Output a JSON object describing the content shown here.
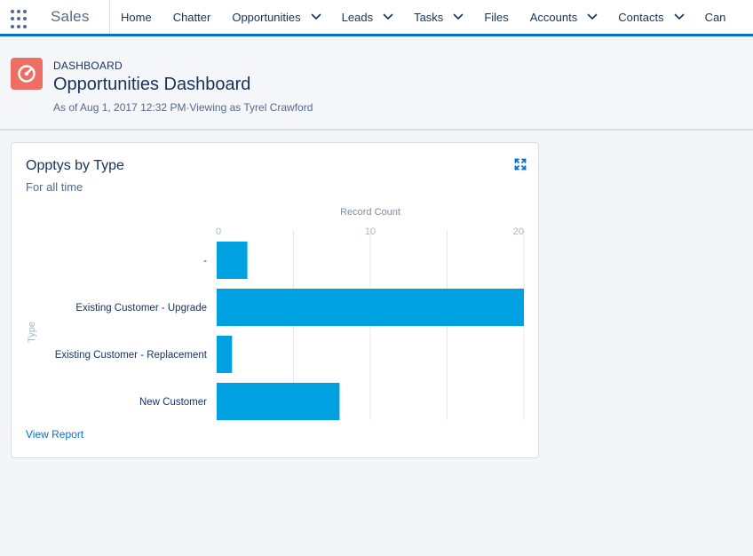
{
  "nav": {
    "app_name": "Sales",
    "items": [
      {
        "label": "Home",
        "menu": false
      },
      {
        "label": "Chatter",
        "menu": false
      },
      {
        "label": "Opportunities",
        "menu": true
      },
      {
        "label": "Leads",
        "menu": true
      },
      {
        "label": "Tasks",
        "menu": true
      },
      {
        "label": "Files",
        "menu": false
      },
      {
        "label": "Accounts",
        "menu": true
      },
      {
        "label": "Contacts",
        "menu": true
      },
      {
        "label": "Can",
        "menu": false
      }
    ]
  },
  "header": {
    "eyebrow": "DASHBOARD",
    "title": "Opportunities Dashboard",
    "subtitle": "As of Aug 1, 2017 12:32 PM·Viewing as Tyrel Crawford"
  },
  "card": {
    "title": "Opptys by Type",
    "subtitle": "For all time",
    "view_report": "View Report"
  },
  "colors": {
    "accent": "#0070d2",
    "bar": "#00a1e0",
    "icon_bg": "#ef6e64"
  },
  "chart_data": {
    "type": "bar",
    "orientation": "horizontal",
    "xlabel": "Record Count",
    "ylabel": "Type",
    "categories": [
      "-",
      "Existing Customer - Upgrade",
      "Existing Customer - Replacement",
      "New Customer"
    ],
    "values": [
      2,
      20,
      1,
      8
    ],
    "xlim": [
      0,
      20
    ],
    "xticks": [
      0,
      10,
      20
    ],
    "grid": true,
    "legend": "none"
  }
}
